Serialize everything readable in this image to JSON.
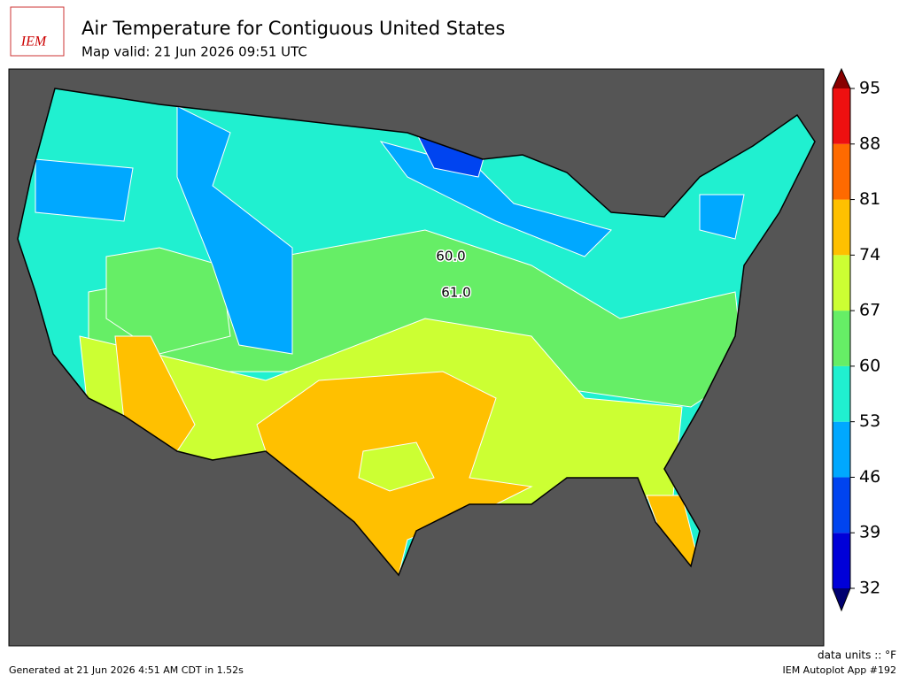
{
  "header": {
    "logo": "IEM",
    "title": "Air Temperature for Contiguous United States",
    "subtitle": "Map valid: 21 Jun 2026 09:51 UTC"
  },
  "colorbar": {
    "levels": [
      32,
      39,
      46,
      53,
      60,
      67,
      74,
      81,
      88,
      95
    ],
    "colors": [
      "#0000d8",
      "#0044f0",
      "#00a8ff",
      "#20f0d0",
      "#66ee66",
      "#ccff33",
      "#ffc000",
      "#ff6a00",
      "#ee1010"
    ],
    "under_color": "#000070",
    "over_color": "#880000"
  },
  "contour_labels": [
    "60.0",
    "61.0"
  ],
  "footer": {
    "units": "data units :: °F",
    "generated": "Generated at 21 Jun 2026 4:51 AM CDT in 1.52s",
    "app": "IEM Autoplot App #192"
  }
}
